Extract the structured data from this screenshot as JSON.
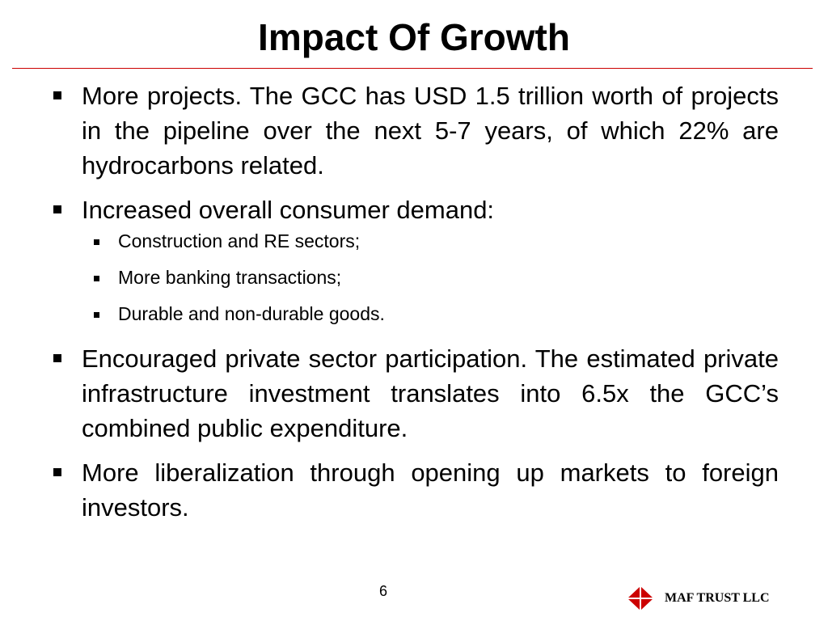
{
  "slide": {
    "title": "Impact Of Growth",
    "page_number": "6",
    "company": "MAF TRUST LLC",
    "accent_color": "#cc0000",
    "logo_icon": "red-diamond-logo-icon"
  },
  "bullets": {
    "b1": "More projects. The GCC has USD 1.5 trillion worth of projects in the pipeline over the next 5-7 years, of which 22% are hydrocarbons related.",
    "b2": "Increased overall consumer demand:",
    "b2_sub": {
      "s1": "Construction and RE sectors;",
      "s2": "More banking transactions;",
      "s3": "Durable and non-durable goods."
    },
    "b3": "Encouraged private sector participation. The estimated private infrastructure investment translates into 6.5x the GCC’s combined public expenditure.",
    "b4": "More liberalization through opening up markets to foreign investors."
  }
}
